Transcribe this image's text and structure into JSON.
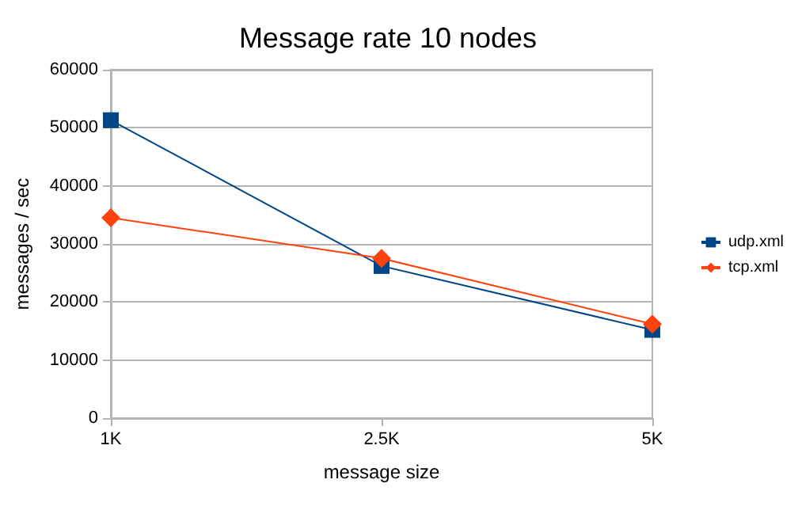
{
  "chart_data": {
    "type": "line",
    "title": "Message rate 10 nodes",
    "xlabel": "message size",
    "ylabel": "messages / sec",
    "categories": [
      "1K",
      "2.5K",
      "5K"
    ],
    "series": [
      {
        "name": "udp.xml",
        "color": "#004586",
        "marker": "square",
        "values": [
          51300,
          26200,
          15200
        ]
      },
      {
        "name": "tcp.xml",
        "color": "#ff420e",
        "marker": "diamond",
        "values": [
          34500,
          27500,
          16200
        ]
      }
    ],
    "ylim": [
      0,
      60000
    ],
    "yticks": [
      0,
      10000,
      20000,
      30000,
      40000,
      50000,
      60000
    ],
    "grid": "y",
    "legend": "right"
  }
}
